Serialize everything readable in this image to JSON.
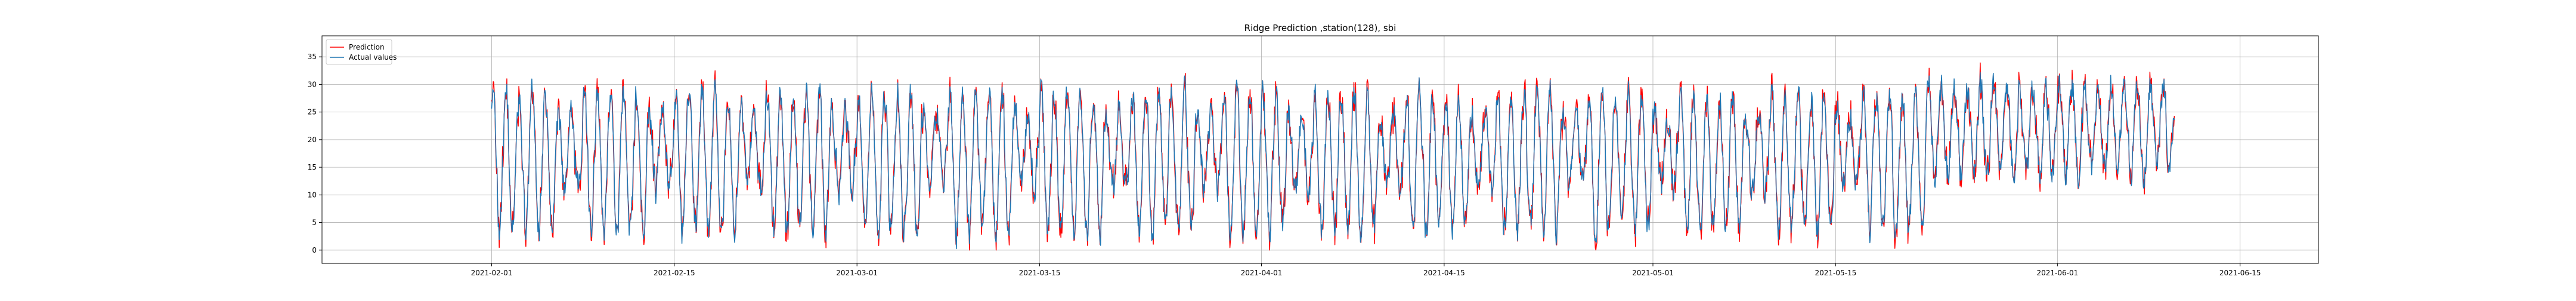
{
  "chart_data": {
    "type": "line",
    "title": "Ridge Prediction ,station(128), sbi",
    "xlabel": "",
    "ylabel": "",
    "xlim": [
      "2021-01-19",
      "2021-06-21"
    ],
    "ylim": [
      -2.4,
      38.8
    ],
    "x_range": [
      "2021-02-01",
      "2021-06-10"
    ],
    "x_ticks": [
      "2021-02-01",
      "2021-02-15",
      "2021-03-01",
      "2021-03-15",
      "2021-04-01",
      "2021-04-15",
      "2021-05-01",
      "2021-05-15",
      "2021-06-01",
      "2021-06-15"
    ],
    "y_ticks": [
      0,
      5,
      10,
      15,
      20,
      25,
      30,
      35
    ],
    "y_min": 0,
    "y_max": 36,
    "grid": true,
    "legend_position": "top-left",
    "series": [
      {
        "name": "Prediction",
        "color": "#ff0000"
      },
      {
        "name": "Actual values",
        "color": "#1f77b4"
      }
    ]
  }
}
